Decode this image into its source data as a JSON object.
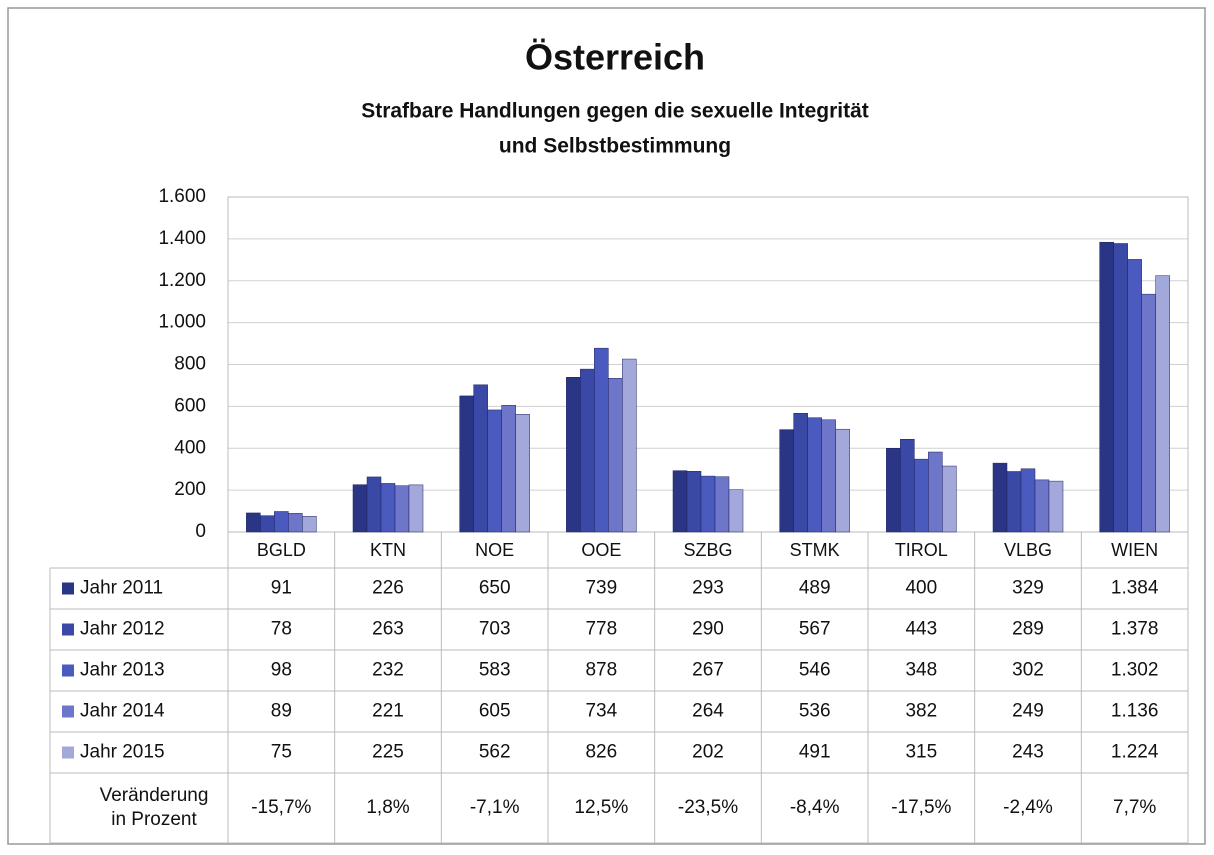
{
  "chart_data": {
    "type": "bar",
    "title": "Österreich",
    "subtitle": [
      "Strafbare Handlungen gegen die sexuelle Integrität",
      "und Selbstbestimmung"
    ],
    "categories": [
      "BGLD",
      "KTN",
      "NOE",
      "OOE",
      "SZBG",
      "STMK",
      "TIROL",
      "VLBG",
      "WIEN"
    ],
    "series": [
      {
        "name": "Jahr 2011",
        "color": "#2b3585",
        "values": [
          91,
          226,
          650,
          739,
          293,
          489,
          400,
          329,
          1384
        ],
        "value_labels": [
          "91",
          "226",
          "650",
          "739",
          "293",
          "489",
          "400",
          "329",
          "1.384"
        ]
      },
      {
        "name": "Jahr 2012",
        "color": "#3a48a6",
        "values": [
          78,
          263,
          703,
          778,
          290,
          567,
          443,
          289,
          1378
        ],
        "value_labels": [
          "78",
          "263",
          "703",
          "778",
          "290",
          "567",
          "443",
          "289",
          "1.378"
        ]
      },
      {
        "name": "Jahr 2013",
        "color": "#4b5abf",
        "values": [
          98,
          232,
          583,
          878,
          267,
          546,
          348,
          302,
          1302
        ],
        "value_labels": [
          "98",
          "232",
          "583",
          "878",
          "267",
          "546",
          "348",
          "302",
          "1.302"
        ]
      },
      {
        "name": "Jahr 2014",
        "color": "#6d76c9",
        "values": [
          89,
          221,
          605,
          734,
          264,
          536,
          382,
          249,
          1136
        ],
        "value_labels": [
          "89",
          "221",
          "605",
          "734",
          "264",
          "536",
          "382",
          "249",
          "1.136"
        ]
      },
      {
        "name": "Jahr 2015",
        "color": "#a3a8da",
        "values": [
          75,
          225,
          562,
          826,
          202,
          491,
          315,
          243,
          1224
        ],
        "value_labels": [
          "75",
          "225",
          "562",
          "826",
          "202",
          "491",
          "315",
          "243",
          "1.224"
        ]
      }
    ],
    "change": {
      "label": "Veränderung in Prozent",
      "values": [
        -15.7,
        1.8,
        -7.1,
        12.5,
        -23.5,
        -8.4,
        -17.5,
        -2.4,
        7.7
      ],
      "value_labels": [
        "-15,7%",
        "1,8%",
        "-7,1%",
        "12,5%",
        "-23,5%",
        "-8,4%",
        "-17,5%",
        "-2,4%",
        "7,7%"
      ]
    },
    "ylim": [
      0,
      1600
    ],
    "yticks": [
      0,
      200,
      400,
      600,
      800,
      {
        "value": 1000,
        "label": "1.000"
      },
      {
        "value": 1200,
        "label": "1.200"
      },
      {
        "value": 1400,
        "label": "1.400"
      },
      {
        "value": 1600,
        "label": "1.600"
      }
    ],
    "grid": true
  }
}
